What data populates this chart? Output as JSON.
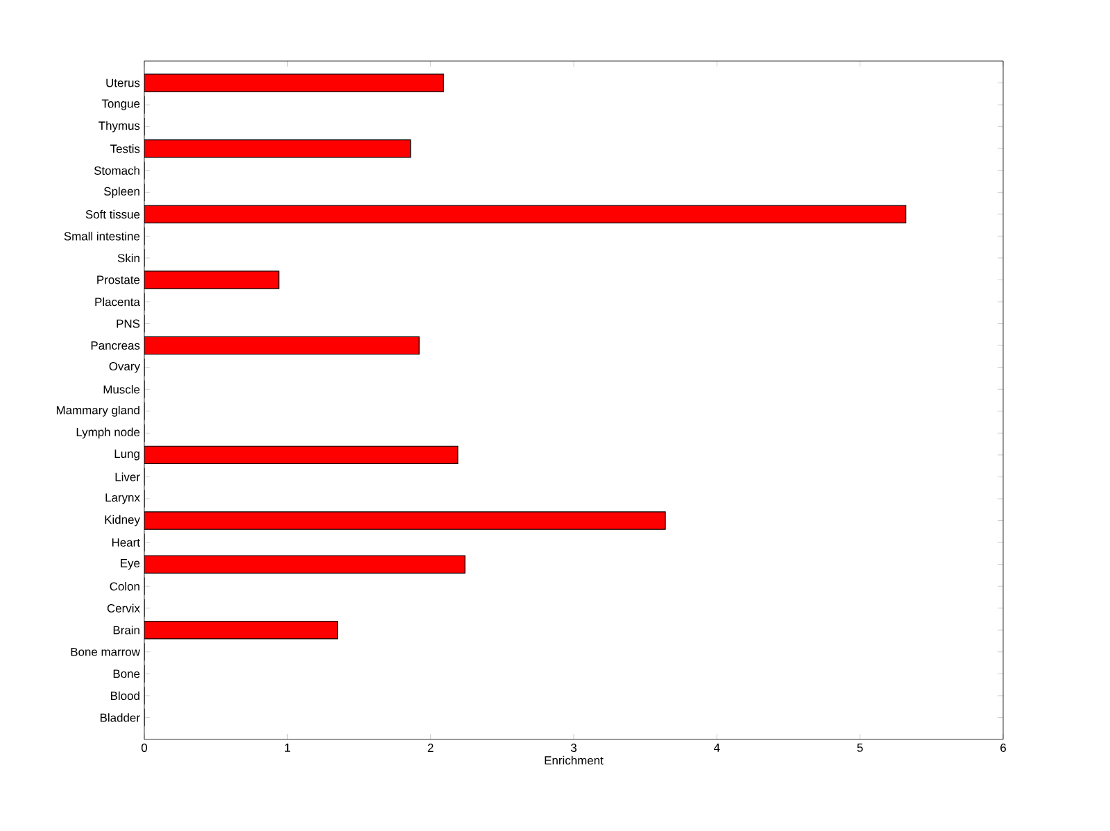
{
  "chart_data": {
    "type": "bar",
    "orientation": "horizontal",
    "xlabel": "Enrichment",
    "categories": [
      "Uterus",
      "Tongue",
      "Thymus",
      "Testis",
      "Stomach",
      "Spleen",
      "Soft tissue",
      "Small intestine",
      "Skin",
      "Prostate",
      "Placenta",
      "PNS",
      "Pancreas",
      "Ovary",
      "Muscle",
      "Mammary gland",
      "Lymph node",
      "Lung",
      "Liver",
      "Larynx",
      "Kidney",
      "Heart",
      "Eye",
      "Colon",
      "Cervix",
      "Brain",
      "Bone marrow",
      "Bone",
      "Blood",
      "Bladder"
    ],
    "values": [
      2.09,
      0,
      0,
      1.86,
      0,
      0,
      5.32,
      0,
      0,
      0.94,
      0,
      0,
      1.92,
      0,
      0,
      0,
      0,
      2.19,
      0,
      0,
      3.64,
      0,
      2.24,
      0,
      0,
      1.35,
      0,
      0,
      0,
      0
    ],
    "color": "#ff0000",
    "xlim": [
      0,
      6
    ],
    "xticks": [
      0,
      1,
      2,
      3,
      4,
      5,
      6
    ]
  }
}
